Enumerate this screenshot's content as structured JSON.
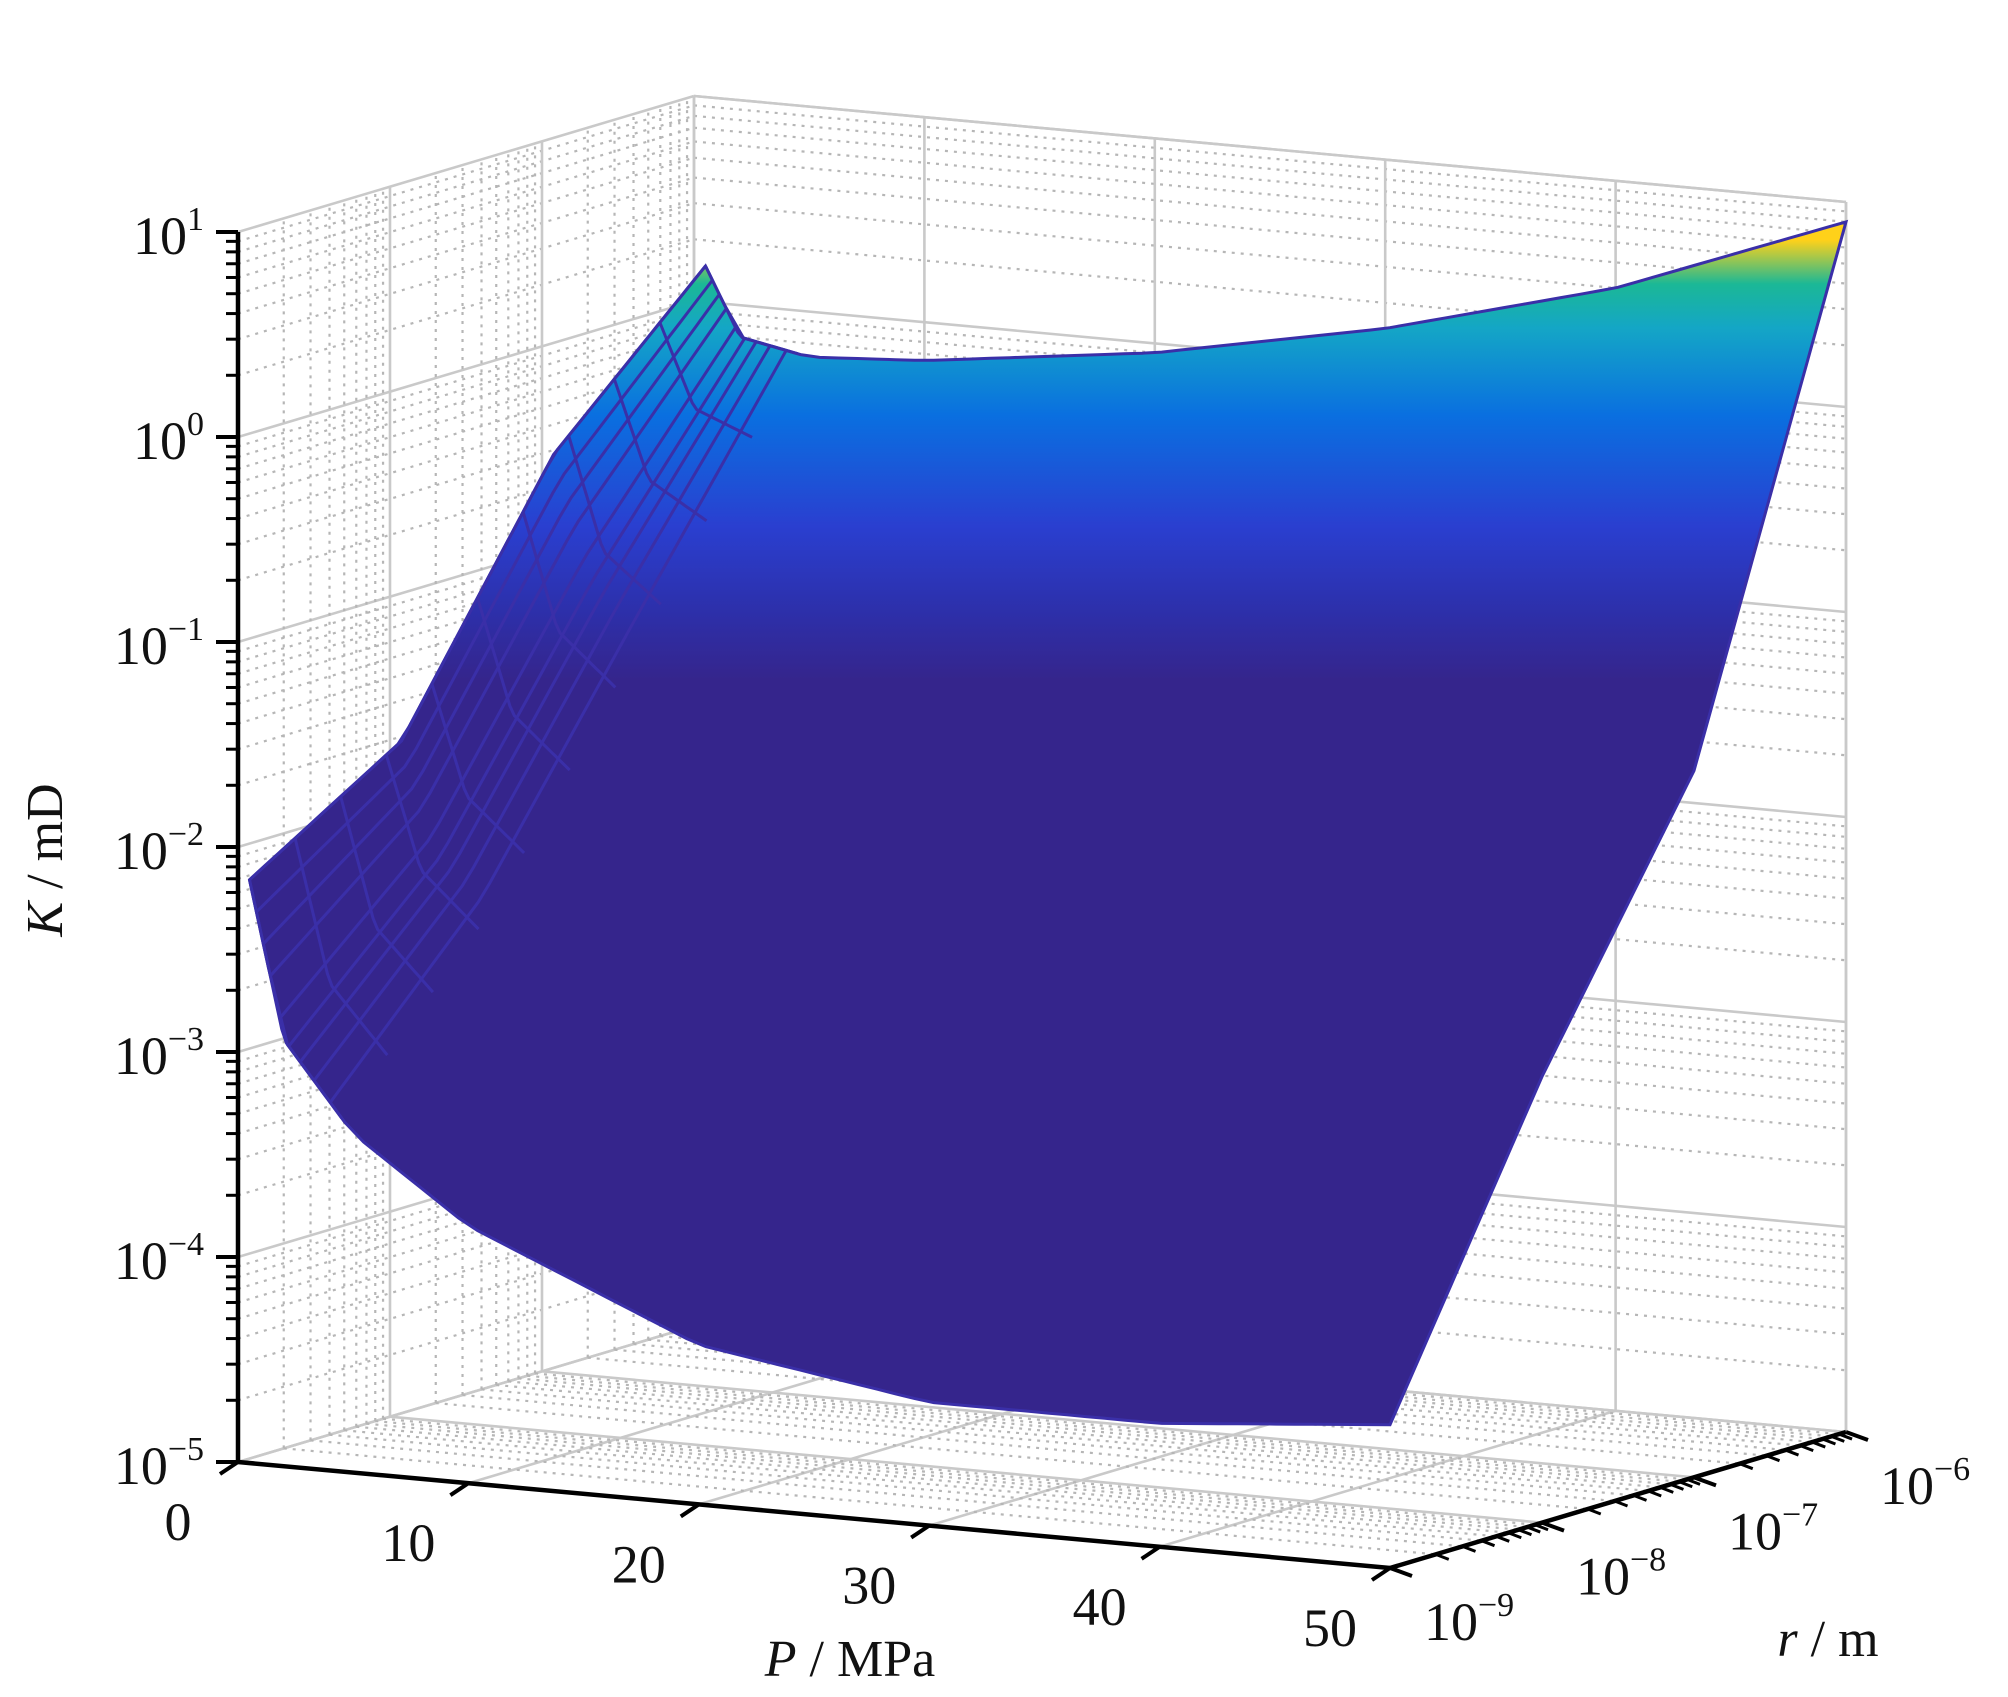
{
  "chart_data": {
    "type": "surface",
    "view": "3d",
    "title": "",
    "xlabel": {
      "var": "P",
      "unit": "MPa"
    },
    "ylabel": {
      "var": "r",
      "unit": "m"
    },
    "zlabel": {
      "var": "K",
      "unit": "mD"
    },
    "x_scale": "linear",
    "y_scale": "log",
    "z_scale": "log",
    "xlim": [
      0,
      50
    ],
    "ylim": [
      1e-09,
      1e-06
    ],
    "zlim": [
      1e-05,
      10
    ],
    "x_ticks": [
      "0",
      "10",
      "20",
      "30",
      "40",
      "50"
    ],
    "y_ticks": [
      {
        "base": "10",
        "exp": "−9"
      },
      {
        "base": "10",
        "exp": "−8"
      },
      {
        "base": "10",
        "exp": "−7"
      },
      {
        "base": "10",
        "exp": "−6"
      }
    ],
    "z_ticks": [
      {
        "base": "10",
        "exp": "−5"
      },
      {
        "base": "10",
        "exp": "−4"
      },
      {
        "base": "10",
        "exp": "−3"
      },
      {
        "base": "10",
        "exp": "−2"
      },
      {
        "base": "10",
        "exp": "−1"
      },
      {
        "base": "10",
        "exp": "0"
      },
      {
        "base": "10",
        "exp": "1"
      }
    ],
    "grid": true,
    "colormap": "parula",
    "colors": {
      "low": "#35258c",
      "mid_low": "#2a3fd0",
      "mid": "#0a6fe0",
      "mid_high": "#14a6c6",
      "high_teal": "#1bb896",
      "high": "#ffd11a"
    },
    "surface_samples": {
      "P_MPa": [
        0.5,
        2,
        5,
        10,
        20,
        30,
        40,
        50
      ],
      "r_m": [
        1e-09,
        1e-08,
        1e-07,
        1e-06
      ],
      "K_mD": [
        [
          0.007,
          0.0012,
          0.00045,
          0.00018,
          6e-05,
          4e-05,
          4e-05,
          5e-05
        ],
        [
          0.02,
          0.006,
          0.003,
          0.002,
          0.0015,
          0.0014,
          0.0014,
          0.0015
        ],
        [
          0.3,
          0.08,
          0.04,
          0.03,
          0.025,
          0.025,
          0.026,
          0.028
        ],
        [
          1.5,
          0.7,
          0.6,
          0.65,
          0.9,
          1.5,
          3,
          8
        ]
      ]
    }
  }
}
